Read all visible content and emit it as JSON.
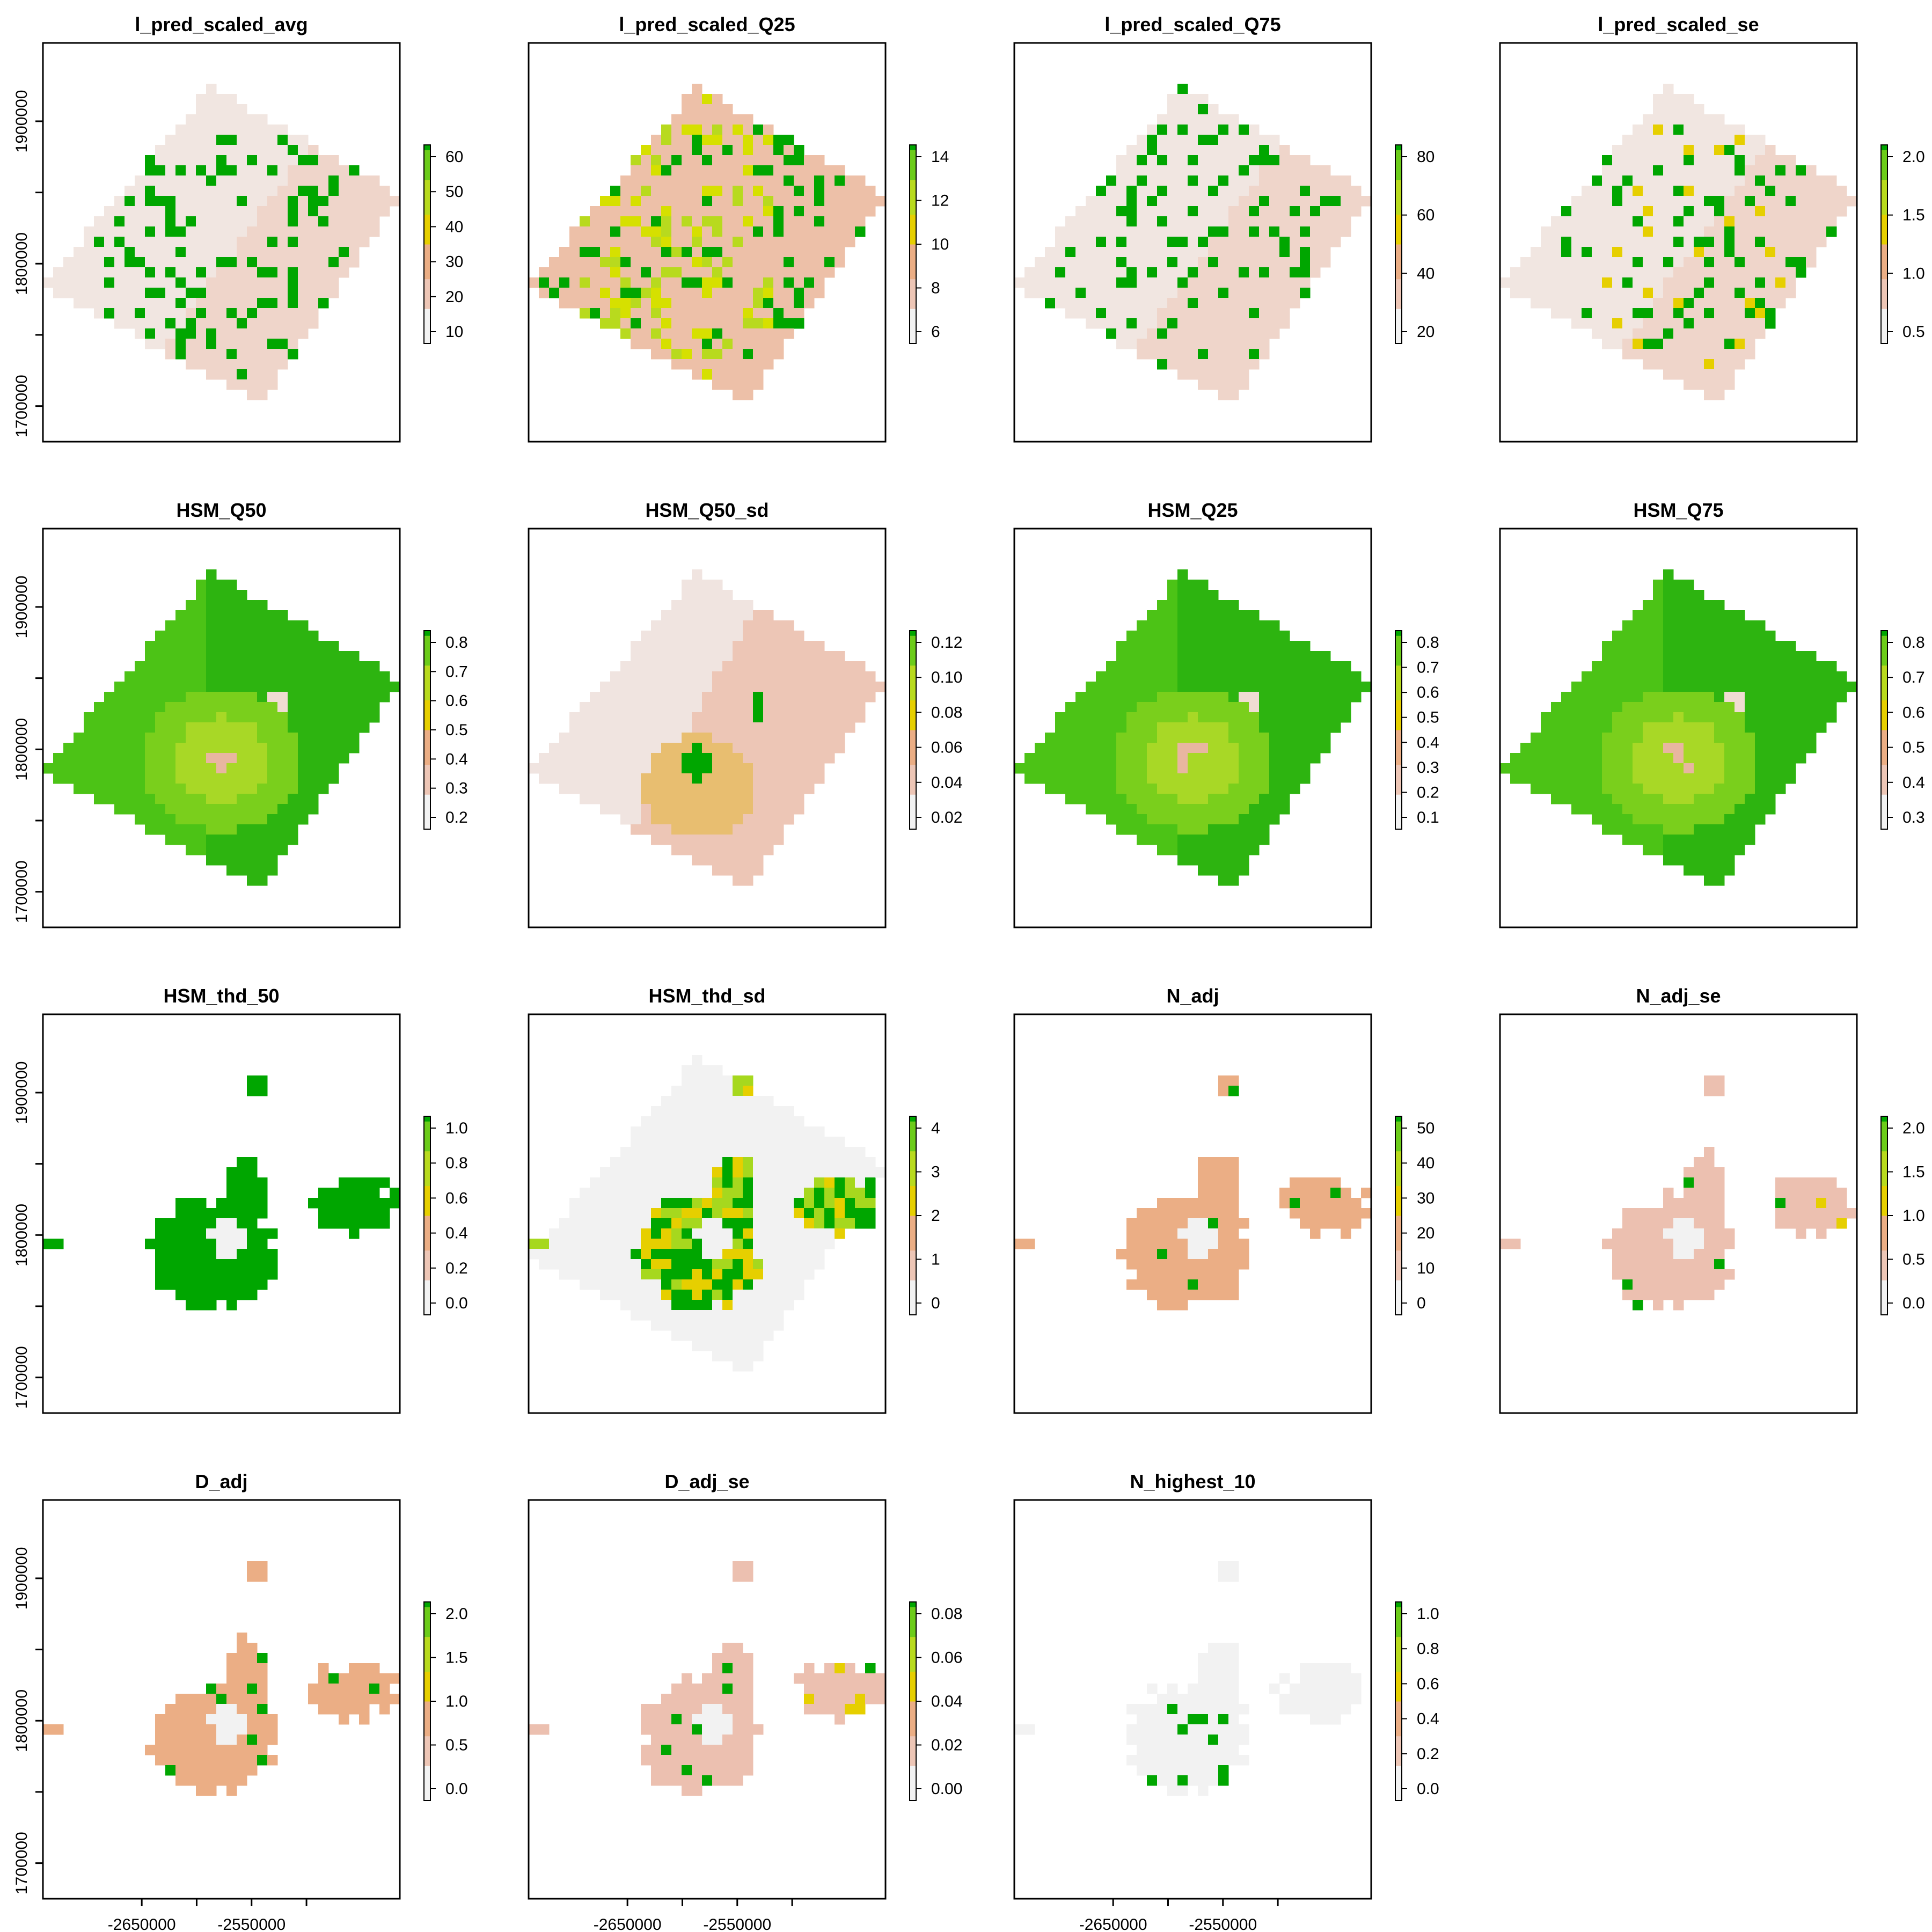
{
  "colors": {
    "terrain": [
      "#F2F2F2",
      "#EDC6B6",
      "#EBAE85",
      "#E6CF00",
      "#C6DE10",
      "#9BD622",
      "#6CCC1A",
      "#00A600"
    ],
    "background": "#FFFFFF",
    "frame": "#000000"
  },
  "x_axis": {
    "ticks": [
      "-2650000",
      "-2550000"
    ]
  },
  "y_axis": {
    "ticks": [
      "1900000",
      "1800000",
      "1700000"
    ]
  },
  "panels": [
    {
      "title": "l_pred_scaled_avg",
      "style": "sparse",
      "legend": [
        "10",
        "20",
        "30",
        "40",
        "50",
        "60"
      ]
    },
    {
      "title": "l_pred_scaled_Q25",
      "style": "sparse_yellow",
      "legend": [
        "6",
        "8",
        "10",
        "12",
        "14"
      ]
    },
    {
      "title": "l_pred_scaled_Q75",
      "style": "sparse",
      "legend": [
        "20",
        "40",
        "60",
        "80"
      ]
    },
    {
      "title": "l_pred_scaled_se",
      "style": "sparse_se",
      "legend": [
        "0.5",
        "1.0",
        "1.5",
        "2.0"
      ]
    },
    {
      "title": "HSM_Q50",
      "style": "hsm",
      "legend": [
        "0.2",
        "0.3",
        "0.4",
        "0.5",
        "0.6",
        "0.7",
        "0.8"
      ]
    },
    {
      "title": "HSM_Q50_sd",
      "style": "hsm_sd",
      "legend": [
        "0.02",
        "0.04",
        "0.06",
        "0.08",
        "0.10",
        "0.12"
      ]
    },
    {
      "title": "HSM_Q25",
      "style": "hsm",
      "legend": [
        "0.1",
        "0.2",
        "0.3",
        "0.4",
        "0.5",
        "0.6",
        "0.7",
        "0.8"
      ]
    },
    {
      "title": "HSM_Q75",
      "style": "hsm",
      "legend": [
        "0.3",
        "0.4",
        "0.5",
        "0.6",
        "0.7",
        "0.8"
      ]
    },
    {
      "title": "HSM_thd_50",
      "style": "thd50",
      "legend": [
        "0.0",
        "0.2",
        "0.4",
        "0.6",
        "0.8",
        "1.0"
      ]
    },
    {
      "title": "HSM_thd_sd",
      "style": "thd_sd",
      "legend": [
        "0",
        "1",
        "2",
        "3",
        "4"
      ]
    },
    {
      "title": "N_adj",
      "style": "nadj",
      "legend": [
        "0",
        "10",
        "20",
        "30",
        "40",
        "50"
      ]
    },
    {
      "title": "N_adj_se",
      "style": "nadj_se",
      "legend": [
        "0.0",
        "0.5",
        "1.0",
        "1.5",
        "2.0"
      ]
    },
    {
      "title": "D_adj",
      "style": "nadj",
      "legend": [
        "0.0",
        "0.5",
        "1.0",
        "1.5",
        "2.0"
      ]
    },
    {
      "title": "D_adj_se",
      "style": "nadj_se",
      "legend": [
        "0.00",
        "0.02",
        "0.04",
        "0.06",
        "0.08"
      ]
    },
    {
      "title": "N_highest_10",
      "style": "highest",
      "legend": [
        "0.0",
        "0.2",
        "0.4",
        "0.6",
        "0.8",
        "1.0"
      ]
    }
  ]
}
